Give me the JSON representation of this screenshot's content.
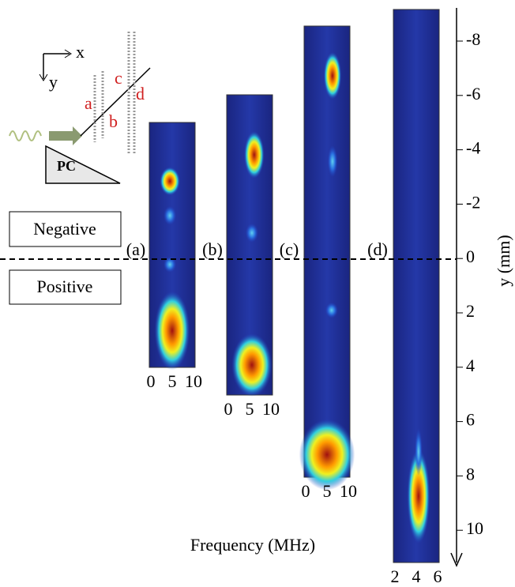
{
  "inset": {
    "x_label": "x",
    "y_label": "y",
    "labels": [
      "a",
      "b",
      "c",
      "d"
    ],
    "prism": "PC"
  },
  "legend": {
    "negative": "Negative",
    "positive": "Positive"
  },
  "panels": [
    {
      "label": "(a)",
      "xticks": [
        "0",
        "5",
        "10"
      ]
    },
    {
      "label": "(b)",
      "xticks": [
        "0",
        "5",
        "10"
      ]
    },
    {
      "label": "(c)",
      "xticks": [
        "0",
        "5",
        "10"
      ]
    },
    {
      "label": "(d)",
      "xticks": [
        "2",
        "4",
        "6"
      ]
    }
  ],
  "y_axis": {
    "label": "y (mm)",
    "ticks": [
      "-8",
      "-6",
      "-4",
      "-2",
      "0",
      "2",
      "4",
      "6",
      "8",
      "10"
    ]
  },
  "x_axis_label": "Frequency (MHz)"
}
